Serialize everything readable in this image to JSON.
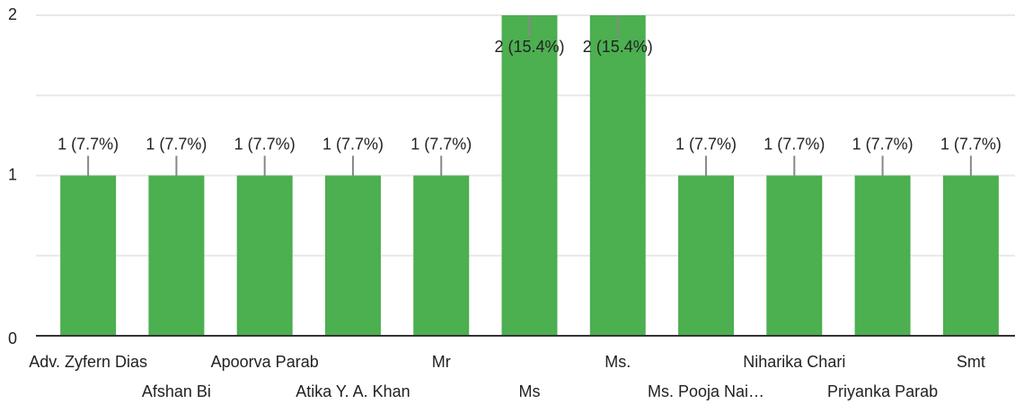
{
  "chart_data": {
    "type": "bar",
    "categories": [
      "Adv. Zyfern Dias",
      "Afshan Bi",
      "Apoorva Parab",
      "Atika Y. A. Khan",
      "Mr",
      "Ms",
      "Ms.",
      "Ms. Pooja Nai…",
      "Niharika Chari",
      "Priyanka Parab",
      "Smt"
    ],
    "values": [
      1,
      1,
      1,
      1,
      1,
      2,
      2,
      1,
      1,
      1,
      1
    ],
    "value_labels": [
      "1 (7.7%)",
      "1 (7.7%)",
      "1 (7.7%)",
      "1 (7.7%)",
      "1 (7.7%)",
      "2 (15.4%)",
      "2 (15.4%)",
      "1 (7.7%)",
      "1 (7.7%)",
      "1 (7.7%)",
      "1 (7.7%)"
    ],
    "color": "#4caf50",
    "ylim": [
      0,
      2
    ],
    "yticks": [
      0,
      1,
      2
    ],
    "minor_yticks": [
      0.5,
      1.5
    ],
    "grid": true
  }
}
